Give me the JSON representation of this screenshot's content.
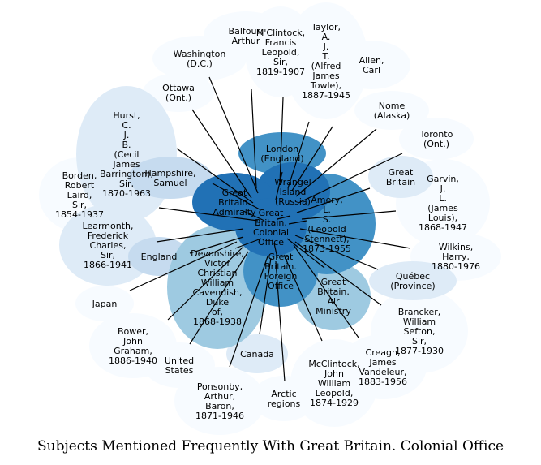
{
  "caption": "Subjects Mentioned Frequently With Great Britain. Colonial Office",
  "colors": {
    "darkest": "#2171b5",
    "dark": "#4292c6",
    "medium": "#9ecae1",
    "light": "#c6dbef",
    "lighter": "#deebf7",
    "lightest": "#f7fbff",
    "edge": "#000000",
    "text_dark": "#ffffff",
    "text_light": "#000000"
  },
  "center": {
    "label": [
      "Great",
      "Britain.",
      "Colonial",
      "Office"
    ]
  },
  "nodes": [
    {
      "id": "balfour",
      "label": [
        "Balfour,",
        "Arthur"
      ]
    },
    {
      "id": "mclintock-francis",
      "label": [
        "M'Clintock,",
        "Francis",
        "Leopold,",
        "Sir,",
        "1819-1907"
      ]
    },
    {
      "id": "taylor",
      "label": [
        "Taylor,",
        "A.",
        "J.",
        "T.",
        "(Alfred",
        "James",
        "Towle),",
        "1887-1945"
      ]
    },
    {
      "id": "allen",
      "label": [
        "Allen,",
        "Carl"
      ]
    },
    {
      "id": "washington",
      "label": [
        "Washington",
        "(D.C.)"
      ]
    },
    {
      "id": "ottawa",
      "label": [
        "Ottawa",
        "(Ont.)"
      ]
    },
    {
      "id": "nome",
      "label": [
        "Nome",
        "(Alaska)"
      ]
    },
    {
      "id": "toronto",
      "label": [
        "Toronto",
        "(Ont.)"
      ]
    },
    {
      "id": "hurst",
      "label": [
        "Hurst,",
        "C.",
        "J.",
        "B.",
        "(Cecil",
        "James",
        "Barrington),",
        "Sir,",
        "1870-1963"
      ]
    },
    {
      "id": "london",
      "label": [
        "London",
        "(England)"
      ]
    },
    {
      "id": "wrangel",
      "label": [
        "Wrangel",
        "Island",
        "(Russia)"
      ]
    },
    {
      "id": "admiralty",
      "label": [
        "Great",
        "Britain.",
        "Admiralty"
      ]
    },
    {
      "id": "amery",
      "label": [
        "Amery,",
        "L.",
        "S.",
        "(Leopold",
        "Stennett),",
        "1873-1955"
      ]
    },
    {
      "id": "great-britain",
      "label": [
        "Great",
        "Britain"
      ]
    },
    {
      "id": "garvin",
      "label": [
        "Garvin,",
        "J.",
        "L.",
        "(James",
        "Louis),",
        "1868-1947"
      ]
    },
    {
      "id": "hampshire",
      "label": [
        "Hampshire,",
        "Samuel"
      ]
    },
    {
      "id": "borden",
      "label": [
        "Borden,",
        "Robert",
        "Laird,",
        "Sir,",
        "1854-1937"
      ]
    },
    {
      "id": "learmonth",
      "label": [
        "Learmonth,",
        "Frederick",
        "Charles,",
        "Sir,",
        "1866-1941"
      ]
    },
    {
      "id": "england",
      "label": [
        "England"
      ]
    },
    {
      "id": "devonshire",
      "label": [
        "Devonshire,",
        "Victor",
        "Christian",
        "William",
        "Cavendish,",
        "Duke",
        "of,",
        "1868-1938"
      ]
    },
    {
      "id": "foreign-office",
      "label": [
        "Great",
        "Britain.",
        "Foreign",
        "Office"
      ]
    },
    {
      "id": "air-ministry",
      "label": [
        "Great",
        "Britain.",
        "Air",
        "Ministry"
      ]
    },
    {
      "id": "quebec",
      "label": [
        "Québec",
        "(Province)"
      ]
    },
    {
      "id": "wilkins",
      "label": [
        "Wilkins,",
        "Harry,",
        "1880-1976"
      ]
    },
    {
      "id": "japan",
      "label": [
        "Japan"
      ]
    },
    {
      "id": "bower",
      "label": [
        "Bower,",
        "John",
        "Graham,",
        "1886-1940"
      ]
    },
    {
      "id": "brancker",
      "label": [
        "Brancker,",
        "William",
        "Sefton,",
        "Sir,",
        "1877-1930"
      ]
    },
    {
      "id": "united-states",
      "label": [
        "United",
        "States"
      ]
    },
    {
      "id": "canada",
      "label": [
        "Canada"
      ]
    },
    {
      "id": "creagh",
      "label": [
        "Creagh,",
        "James",
        "Vandeleur,",
        "1883-1956"
      ]
    },
    {
      "id": "ponsonby",
      "label": [
        "Ponsonby,",
        "Arthur,",
        "Baron,",
        "1871-1946"
      ]
    },
    {
      "id": "arctic",
      "label": [
        "Arctic",
        "regions"
      ]
    },
    {
      "id": "mcclintock-john",
      "label": [
        "McClintock,",
        "John",
        "William",
        "Leopold,",
        "1874-1929"
      ]
    }
  ]
}
